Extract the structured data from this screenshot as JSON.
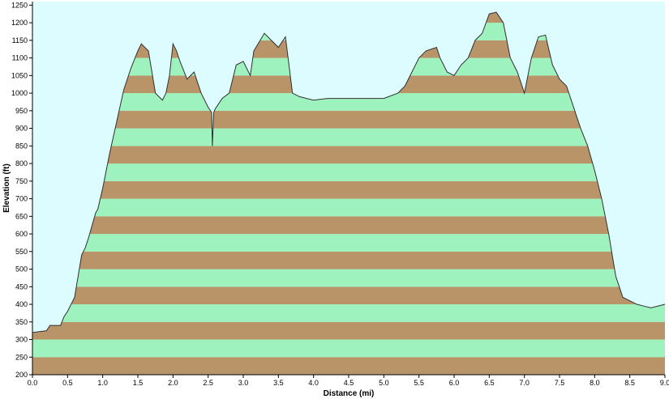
{
  "colors": {
    "plot_background": "#dcfcff",
    "band_brown": "#b99468",
    "band_green": "#9ef2bd",
    "profile_line": "#303030",
    "axis": "#000000"
  },
  "chart_data": {
    "type": "area",
    "title": "",
    "xlabel": "Distance  (mi)",
    "ylabel": "Elevation (ft)",
    "xlim": [
      0.0,
      9.0
    ],
    "ylim": [
      200,
      1260
    ],
    "x_ticks": [
      "0.0",
      "0.5",
      "1.0",
      "1.5",
      "2.0",
      "2.5",
      "3.0",
      "3.5",
      "4.0",
      "4.5",
      "5.0",
      "5.5",
      "6.0",
      "6.5",
      "7.0",
      "7.5",
      "8.0",
      "8.5",
      "9.0"
    ],
    "y_ticks": [
      "200",
      "250",
      "300",
      "350",
      "400",
      "450",
      "500",
      "550",
      "600",
      "650",
      "700",
      "750",
      "800",
      "850",
      "900",
      "950",
      "1000",
      "1050",
      "1100",
      "1150",
      "1200",
      "1250"
    ],
    "band_interval": 50,
    "grid": false,
    "legend": "none",
    "series": [
      {
        "x": [
          0.0,
          0.2,
          0.25,
          0.4,
          0.45,
          0.5,
          0.6,
          0.7,
          0.75,
          0.8,
          0.9,
          0.93,
          1.0,
          1.1,
          1.2,
          1.3,
          1.4,
          1.5,
          1.55,
          1.65,
          1.75,
          1.85,
          1.9,
          1.95,
          2.0,
          2.05,
          2.1,
          2.2,
          2.3,
          2.4,
          2.5,
          2.55,
          2.56,
          2.58,
          2.6,
          2.7,
          2.8,
          2.9,
          3.0,
          3.1,
          3.15,
          3.3,
          3.4,
          3.5,
          3.6,
          3.7,
          3.8,
          4.0,
          4.2,
          4.5,
          4.8,
          5.0,
          5.2,
          5.3,
          5.4,
          5.5,
          5.6,
          5.75,
          5.8,
          5.9,
          6.0,
          6.1,
          6.2,
          6.3,
          6.4,
          6.5,
          6.6,
          6.7,
          6.8,
          6.9,
          7.0,
          7.1,
          7.2,
          7.3,
          7.4,
          7.5,
          7.6,
          7.7,
          7.8,
          7.9,
          8.0,
          8.1,
          8.2,
          8.3,
          8.4,
          8.5,
          8.6,
          8.7,
          8.8,
          9.0
        ],
        "values": [
          320,
          325,
          340,
          340,
          365,
          380,
          420,
          540,
          560,
          590,
          660,
          670,
          730,
          830,
          920,
          1010,
          1070,
          1120,
          1140,
          1120,
          1000,
          980,
          1000,
          1050,
          1140,
          1120,
          1090,
          1040,
          1060,
          1000,
          960,
          945,
          850,
          945,
          955,
          985,
          1000,
          1080,
          1090,
          1050,
          1120,
          1170,
          1150,
          1130,
          1160,
          1000,
          990,
          980,
          985,
          985,
          985,
          985,
          1000,
          1020,
          1060,
          1100,
          1120,
          1130,
          1100,
          1060,
          1050,
          1080,
          1100,
          1150,
          1170,
          1225,
          1230,
          1200,
          1100,
          1060,
          1000,
          1100,
          1160,
          1165,
          1080,
          1040,
          1020,
          960,
          900,
          850,
          780,
          700,
          600,
          480,
          420,
          410,
          400,
          395,
          390,
          400
        ]
      }
    ]
  }
}
